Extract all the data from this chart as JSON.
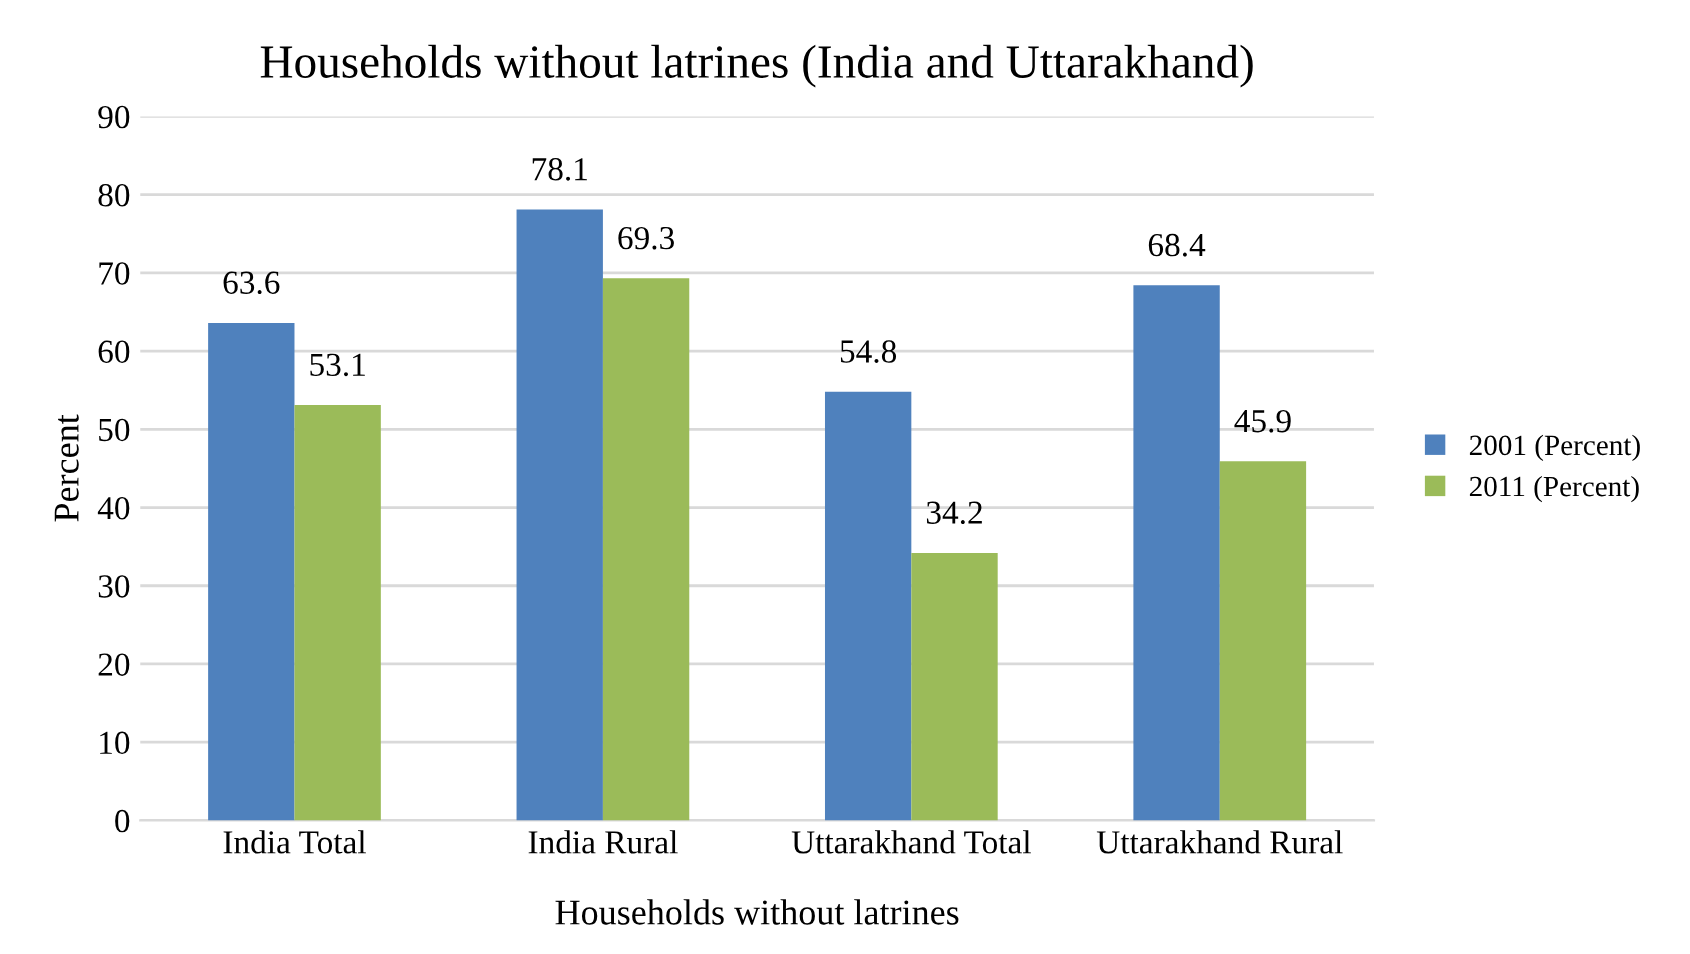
{
  "chart_data": {
    "type": "bar",
    "title": "Households without latrines (India and Uttarakhand)",
    "xlabel": "Households without latrines",
    "ylabel": "Percent",
    "categories": [
      "India Total",
      "India Rural",
      "Uttarakhand Total",
      "Uttarakhand Rural"
    ],
    "series": [
      {
        "name": "2001 (Percent)",
        "color": "#4f81bd",
        "values": [
          63.6,
          78.1,
          54.8,
          68.4
        ]
      },
      {
        "name": "2011 (Percent)",
        "color": "#9bbb59",
        "values": [
          53.1,
          69.3,
          34.2,
          45.9
        ]
      }
    ],
    "ylim": [
      0,
      90
    ],
    "yticks": [
      0,
      10,
      20,
      30,
      40,
      50,
      60,
      70,
      80,
      90
    ],
    "grid": "y",
    "legend": "right",
    "data_labels": true
  }
}
